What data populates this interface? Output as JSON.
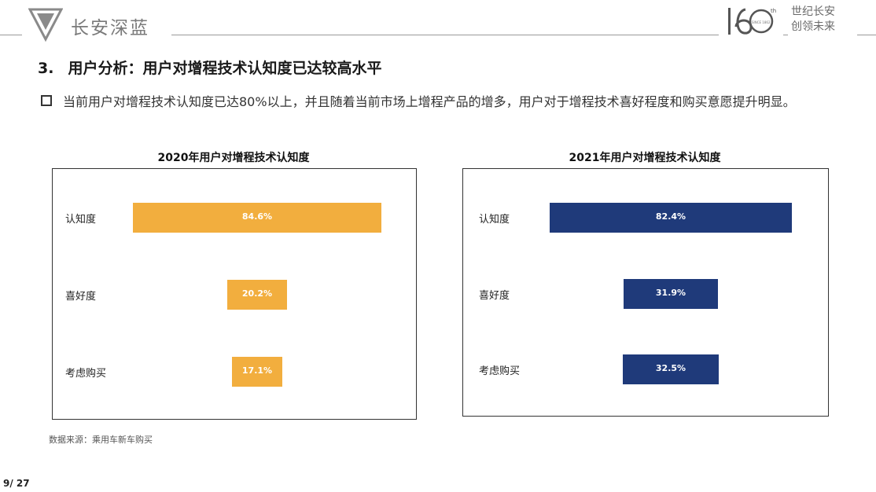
{
  "header": {
    "brand": "长安深蓝",
    "anniversary": {
      "number": "160",
      "suffix": "th",
      "since": "SINCE 1862"
    },
    "slogan_line1": "世纪长安",
    "slogan_line2": "创领未来"
  },
  "title": {
    "number": "3.",
    "text": "用户分析：用户对增程技术认知度已达较高水平"
  },
  "bullet": {
    "text": "当前用户对增程技术认知度已达80%以上，并且随着当前市场上增程产品的增多，用户对于增程技术喜好程度和购买意愿提升明显。"
  },
  "footer": {
    "source": "数据来源：乘用车新车购买",
    "page": "9/ 27"
  },
  "colors": {
    "chart1_bar": "#F2AE3E",
    "chart2_bar": "#1F3A7A"
  },
  "chart_data": [
    {
      "type": "bar",
      "orientation": "horizontal",
      "title": "2020年用户对增程技术认知度",
      "categories": [
        "认知度",
        "喜好度",
        "考虑购买"
      ],
      "values": [
        84.6,
        20.2,
        17.1
      ],
      "labels": [
        "84.6%",
        "20.2%",
        "17.1%"
      ],
      "unit": "%",
      "color": "#F2AE3E",
      "xlim": [
        0,
        100
      ],
      "grid": false,
      "legend": "none"
    },
    {
      "type": "bar",
      "orientation": "horizontal",
      "title": "2021年用户对增程技术认知度",
      "categories": [
        "认知度",
        "喜好度",
        "考虑购买"
      ],
      "values": [
        82.4,
        31.9,
        32.5
      ],
      "labels": [
        "82.4%",
        "31.9%",
        "32.5%"
      ],
      "unit": "%",
      "color": "#1F3A7A",
      "xlim": [
        0,
        100
      ],
      "grid": false,
      "legend": "none"
    }
  ]
}
